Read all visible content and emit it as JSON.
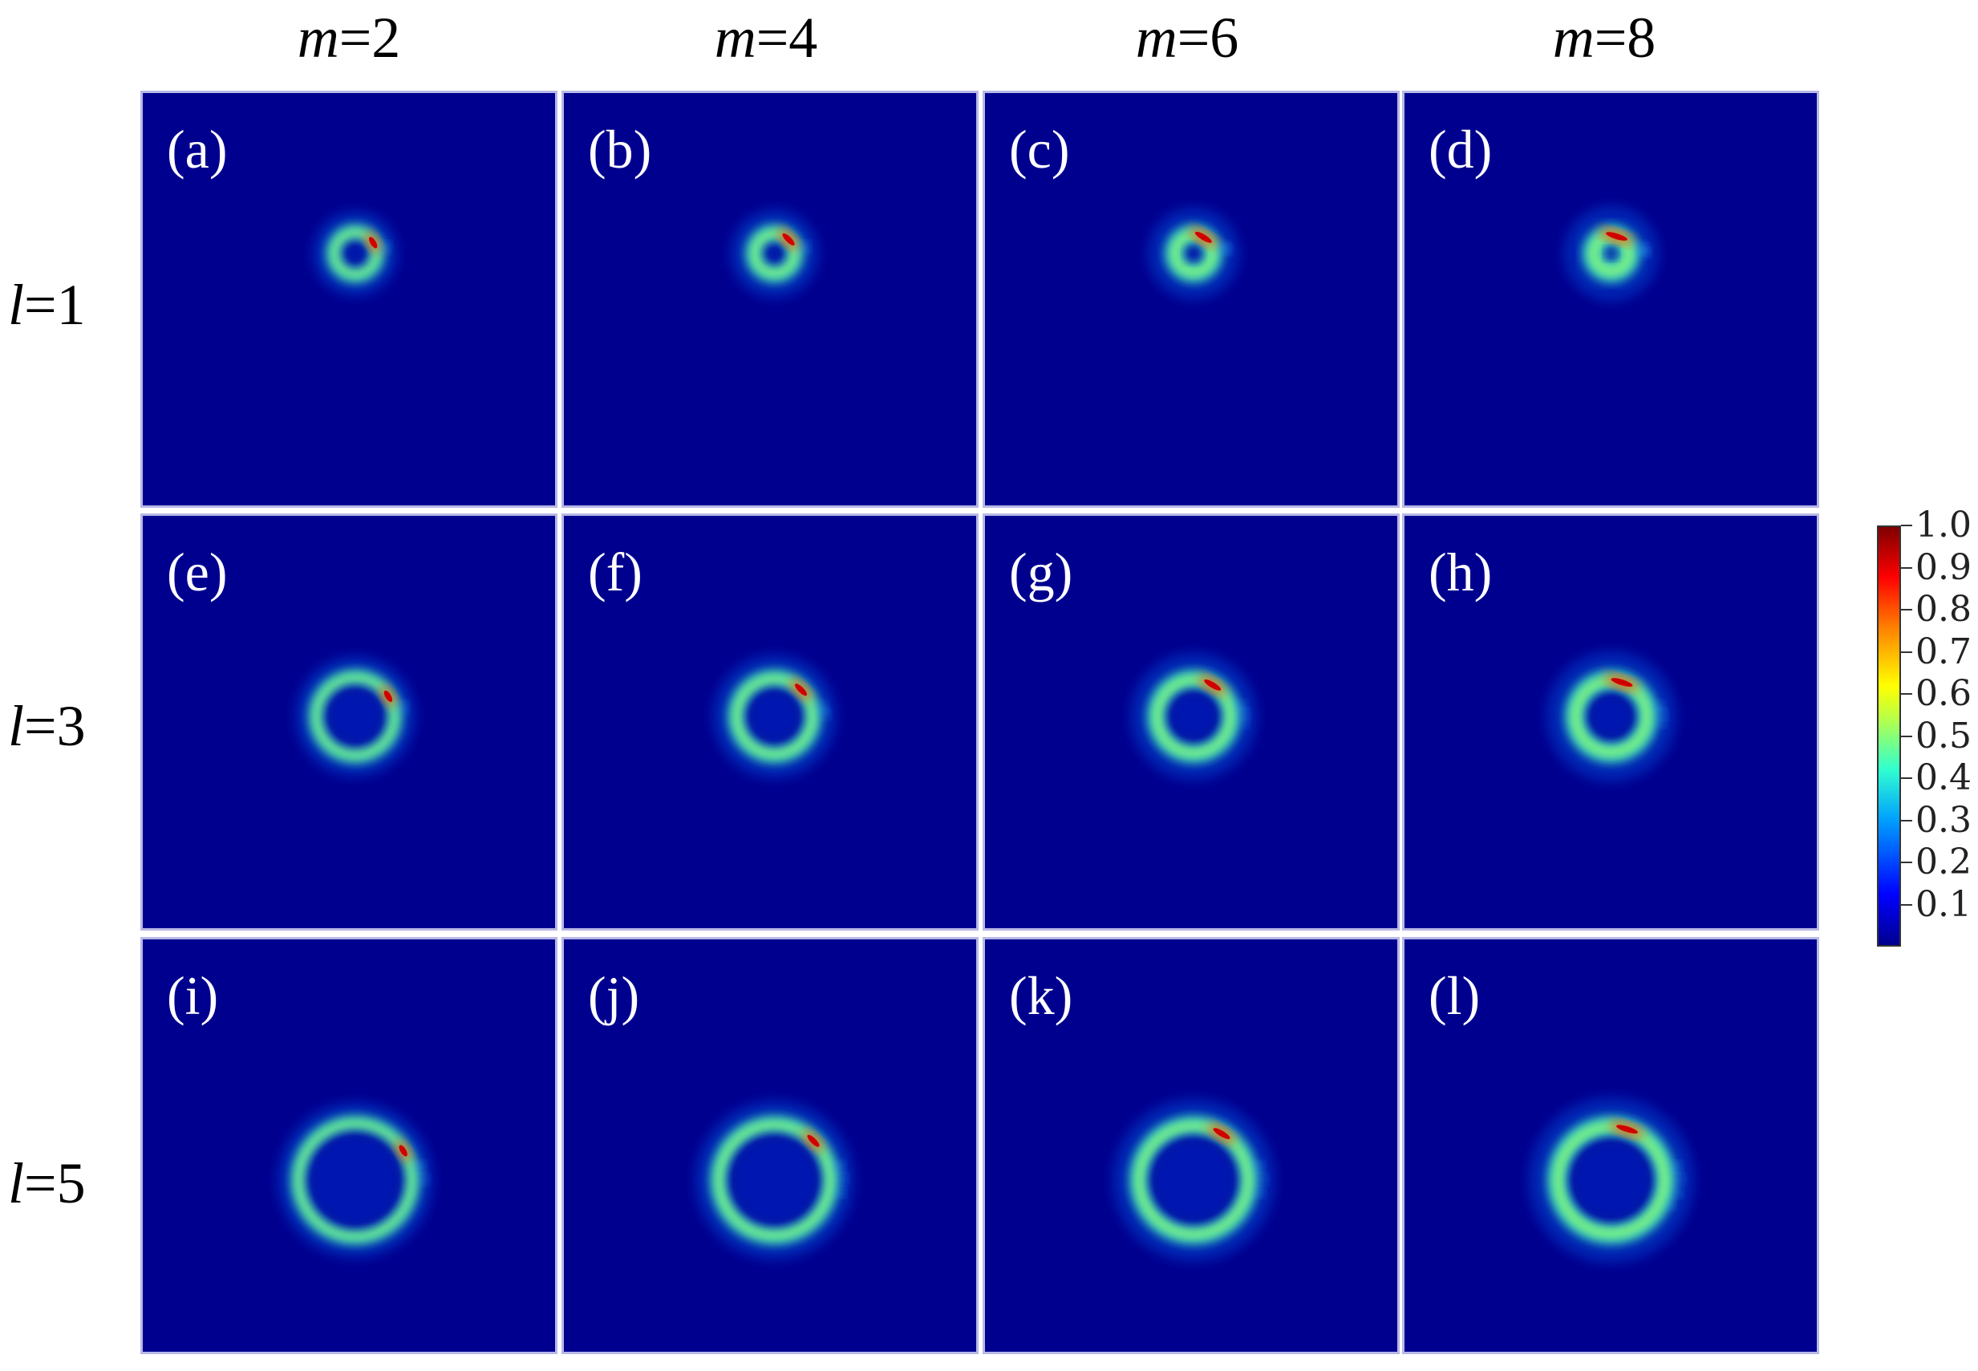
{
  "columns": [
    {
      "var": "m",
      "eq": "=2"
    },
    {
      "var": "m",
      "eq": "=4"
    },
    {
      "var": "m",
      "eq": "=6"
    },
    {
      "var": "m",
      "eq": "=8"
    }
  ],
  "rows": [
    {
      "var": "l",
      "eq": "=1"
    },
    {
      "var": "l",
      "eq": "=3"
    },
    {
      "var": "l",
      "eq": "=5"
    }
  ],
  "panels": [
    {
      "label": "(a)",
      "m": 2,
      "l": 1
    },
    {
      "label": "(b)",
      "m": 4,
      "l": 1
    },
    {
      "label": "(c)",
      "m": 6,
      "l": 1
    },
    {
      "label": "(d)",
      "m": 8,
      "l": 1
    },
    {
      "label": "(e)",
      "m": 2,
      "l": 3
    },
    {
      "label": "(f)",
      "m": 4,
      "l": 3
    },
    {
      "label": "(g)",
      "m": 6,
      "l": 3
    },
    {
      "label": "(h)",
      "m": 8,
      "l": 3
    },
    {
      "label": "(i)",
      "m": 2,
      "l": 5
    },
    {
      "label": "(j)",
      "m": 4,
      "l": 5
    },
    {
      "label": "(k)",
      "m": 6,
      "l": 5
    },
    {
      "label": "(l)",
      "m": 8,
      "l": 5
    }
  ],
  "colorbar": {
    "ticks": [
      "1.0",
      "0.9",
      "0.8",
      "0.7",
      "0.6",
      "0.5",
      "0.4",
      "0.3",
      "0.2",
      "0.1"
    ],
    "colors": [
      "#00008f",
      "#0000ff",
      "#00a0ff",
      "#30ffd0",
      "#c0ff40",
      "#ffff00",
      "#ff8000",
      "#ff0000",
      "#800000"
    ]
  }
}
